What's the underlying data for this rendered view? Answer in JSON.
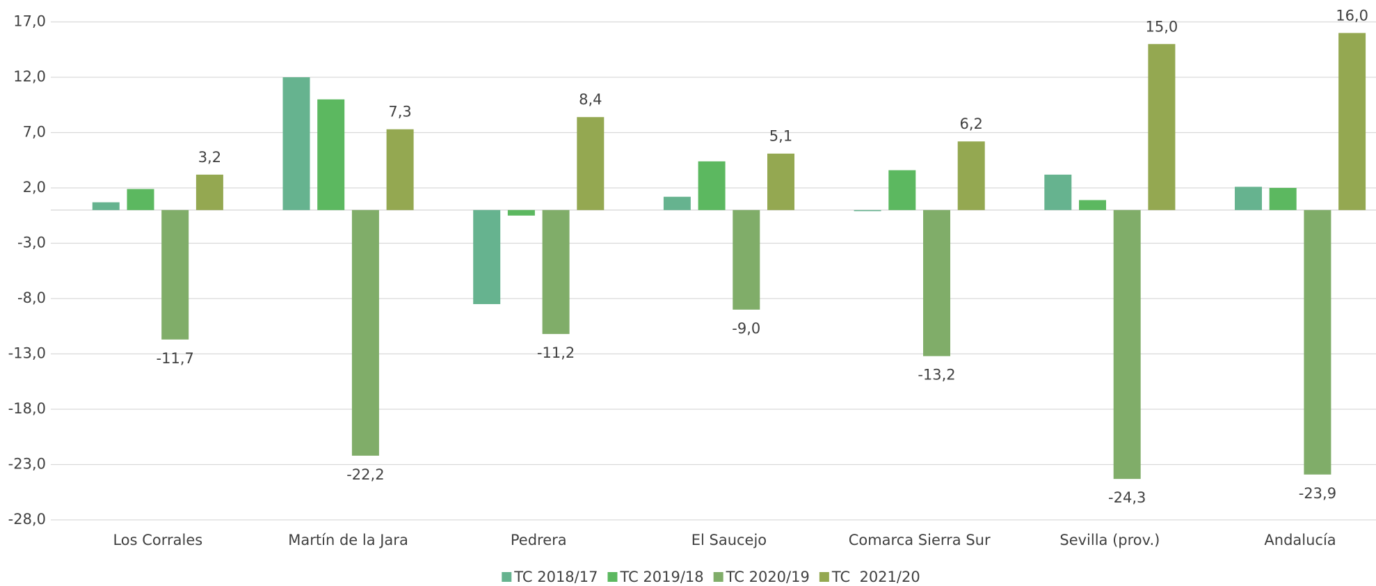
{
  "chart_data": {
    "type": "bar",
    "categories": [
      "Los Corrales",
      "Martín de la Jara",
      "Pedrera",
      "El Saucejo",
      "Comarca Sierra Sur",
      "Sevilla (prov.)",
      "Andalucía"
    ],
    "series": [
      {
        "name": "TC 2018/17",
        "color": "#66b38f",
        "values": [
          0.7,
          12.0,
          -8.5,
          1.2,
          -0.1,
          3.2,
          2.1
        ]
      },
      {
        "name": "TC 2019/18",
        "color": "#5cb860",
        "values": [
          1.9,
          10.0,
          -0.5,
          4.4,
          3.6,
          0.9,
          2.0
        ]
      },
      {
        "name": "TC 2020/19",
        "color": "#80ad69",
        "values": [
          -11.7,
          -22.2,
          -11.2,
          -9.0,
          -13.2,
          -24.3,
          -23.9
        ],
        "value_labels": [
          "-11,7",
          "-22,2",
          "-11,2",
          "-9,0",
          "-13,2",
          "-24,3",
          "-23,9"
        ]
      },
      {
        "name": "TC  2021/20",
        "color": "#94a851",
        "values": [
          3.2,
          7.3,
          8.4,
          5.1,
          6.2,
          15.0,
          16.0
        ],
        "value_labels": [
          "3,2",
          "7,3",
          "8,4",
          "5,1",
          "6,2",
          "15,0",
          "16,0"
        ]
      }
    ],
    "ylim": [
      -28,
      17
    ],
    "yticks": [
      {
        "value": -28,
        "label": "-28,0"
      },
      {
        "value": -23,
        "label": "-23,0"
      },
      {
        "value": -18,
        "label": "-18,0"
      },
      {
        "value": -13,
        "label": "-13,0"
      },
      {
        "value": -8,
        "label": "-8,0"
      },
      {
        "value": -3,
        "label": "-3,0"
      },
      {
        "value": 2,
        "label": "2,0"
      },
      {
        "value": 7,
        "label": "7,0"
      },
      {
        "value": 12,
        "label": "12,0"
      },
      {
        "value": 17,
        "label": "17,0"
      }
    ],
    "grid": true,
    "legend": "bottom"
  }
}
